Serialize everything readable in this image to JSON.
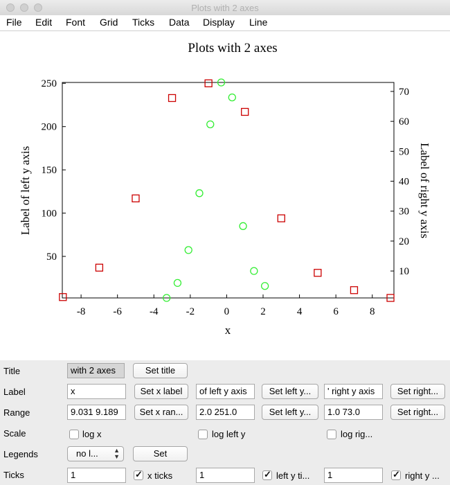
{
  "window": {
    "title": "Plots with 2 axes"
  },
  "menu": [
    "File",
    "Edit",
    "Font",
    "Grid",
    "Ticks",
    "Data",
    "Display",
    "Line"
  ],
  "chart_data": {
    "type": "scatter",
    "title": "Plots with 2 axes",
    "xlabel": "x",
    "ylabel_left": "Label of left y axis",
    "ylabel_right": "Label of right y axis",
    "xlim": [
      -9.031,
      9.189
    ],
    "ylim_left": [
      2.0,
      251.0
    ],
    "ylim_right": [
      1.0,
      73.0
    ],
    "x_ticks": [
      -8,
      -6,
      -4,
      -2,
      0,
      2,
      4,
      6,
      8
    ],
    "y_left_ticks": [
      50,
      100,
      150,
      200,
      250
    ],
    "y_right_ticks": [
      10,
      20,
      30,
      40,
      50,
      60,
      70
    ],
    "grid": false,
    "series": [
      {
        "axis": "left",
        "marker": "square",
        "color": "#cc0000",
        "x": [
          -9,
          -7,
          -5,
          -3,
          -1,
          1,
          3,
          5,
          7,
          9
        ],
        "y": [
          3,
          37,
          117,
          233,
          250,
          217,
          94,
          31,
          11,
          2
        ]
      },
      {
        "axis": "right",
        "marker": "circle",
        "color": "#33ee33",
        "x": [
          -3.3,
          -2.7,
          -2.1,
          -1.5,
          -0.9,
          -0.3,
          0.3,
          0.9,
          1.5,
          2.1
        ],
        "y": [
          1,
          6,
          17,
          36,
          59,
          73,
          68,
          25,
          10,
          5
        ]
      }
    ]
  },
  "controls": {
    "title": {
      "label": "Title",
      "value": "with 2 axes",
      "button": "Set title"
    },
    "label": {
      "label": "Label",
      "x_value": "x",
      "x_button": "Set x label",
      "left_value": "of left y axis",
      "left_button": "Set left y...",
      "right_value": "' right y axis",
      "right_button": "Set right..."
    },
    "range": {
      "label": "Range",
      "x_value": "9.031 9.189",
      "x_button": "Set x ran...",
      "left_value": "2.0 251.0",
      "left_button": "Set left y...",
      "right_value": "1.0 73.0",
      "right_button": "Set right..."
    },
    "scale": {
      "label": "Scale",
      "log_x": "log x",
      "log_left": "log left y",
      "log_right": "log rig..."
    },
    "legends": {
      "label": "Legends",
      "select_value": "no l...",
      "button": "Set"
    },
    "ticks": {
      "label": "Ticks",
      "x_value": "1",
      "x_check": "x ticks",
      "left_value": "1",
      "left_check": "left y ti...",
      "right_value": "1",
      "right_check": "right y ..."
    }
  }
}
